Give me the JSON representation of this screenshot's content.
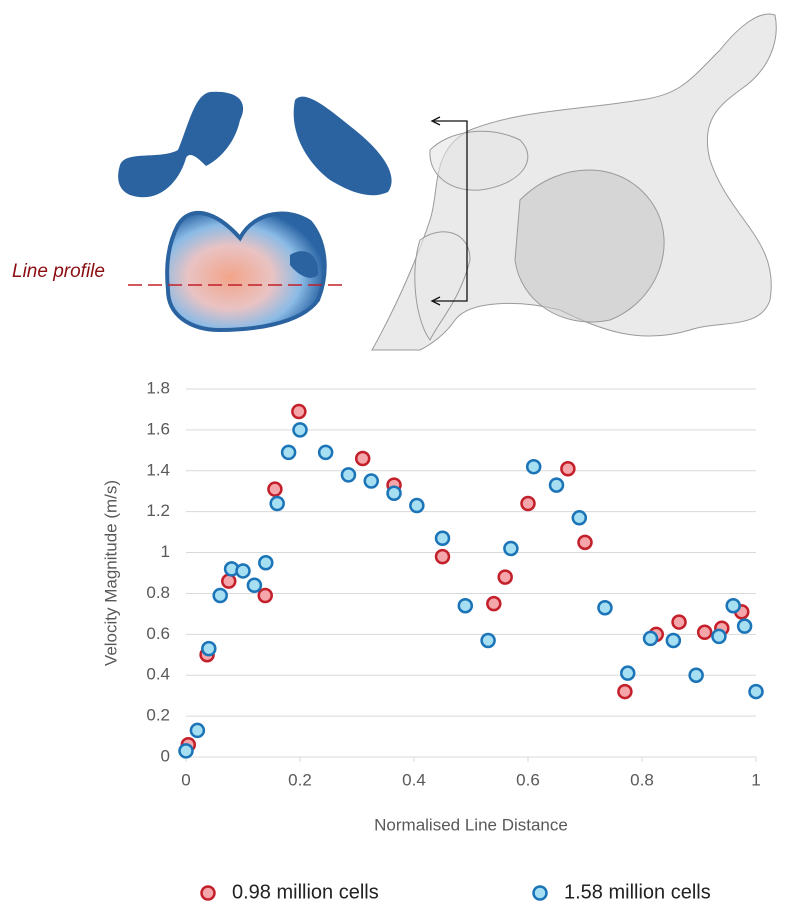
{
  "illustration": {
    "label": "Line profile"
  },
  "chart_data": {
    "type": "scatter",
    "xlabel": "Normalised Line Distance",
    "ylabel": "Velocity Magnitude (m/s)",
    "xlim": [
      0,
      1
    ],
    "xticks": [
      0,
      0.2,
      0.4,
      0.6,
      0.8,
      1
    ],
    "ylim": [
      0,
      1.8
    ],
    "yticks": [
      0,
      0.2,
      0.4,
      0.6,
      0.8,
      1,
      1.2,
      1.4,
      1.6,
      1.8
    ],
    "grid": true,
    "legend": "bottom",
    "series": [
      {
        "name": "0.98 million cells",
        "color": "#f4a6aa",
        "edgecolor": "#c3202b",
        "x": [
          0.004,
          0.037,
          0.075,
          0.139,
          0.156,
          0.198,
          0.31,
          0.365,
          0.45,
          0.54,
          0.56,
          0.6,
          0.67,
          0.7,
          0.77,
          0.825,
          0.865,
          0.91,
          0.94,
          0.975
        ],
        "values": [
          0.06,
          0.5,
          0.86,
          0.79,
          1.31,
          1.69,
          1.46,
          1.33,
          0.98,
          0.75,
          0.88,
          1.24,
          1.41,
          1.05,
          0.32,
          0.6,
          0.66,
          0.61,
          0.63,
          0.71
        ]
      },
      {
        "name": "1.58 million cells",
        "color": "#a6def2",
        "edgecolor": "#1b74b7",
        "x": [
          0,
          0.02,
          0.04,
          0.06,
          0.08,
          0.1,
          0.12,
          0.14,
          0.16,
          0.18,
          0.2,
          0.245,
          0.285,
          0.325,
          0.365,
          0.405,
          0.45,
          0.49,
          0.53,
          0.57,
          0.61,
          0.65,
          0.69,
          0.735,
          0.775,
          0.815,
          0.855,
          0.895,
          0.935,
          0.96,
          0.98,
          1
        ],
        "values": [
          0.03,
          0.13,
          0.53,
          0.79,
          0.92,
          0.91,
          0.84,
          0.95,
          1.24,
          1.49,
          1.6,
          1.49,
          1.38,
          1.35,
          1.29,
          1.23,
          1.07,
          0.74,
          0.57,
          1.02,
          1.42,
          1.33,
          1.17,
          0.73,
          0.41,
          0.58,
          0.57,
          0.4,
          0.59,
          0.74,
          0.64,
          0.32
        ]
      }
    ]
  }
}
